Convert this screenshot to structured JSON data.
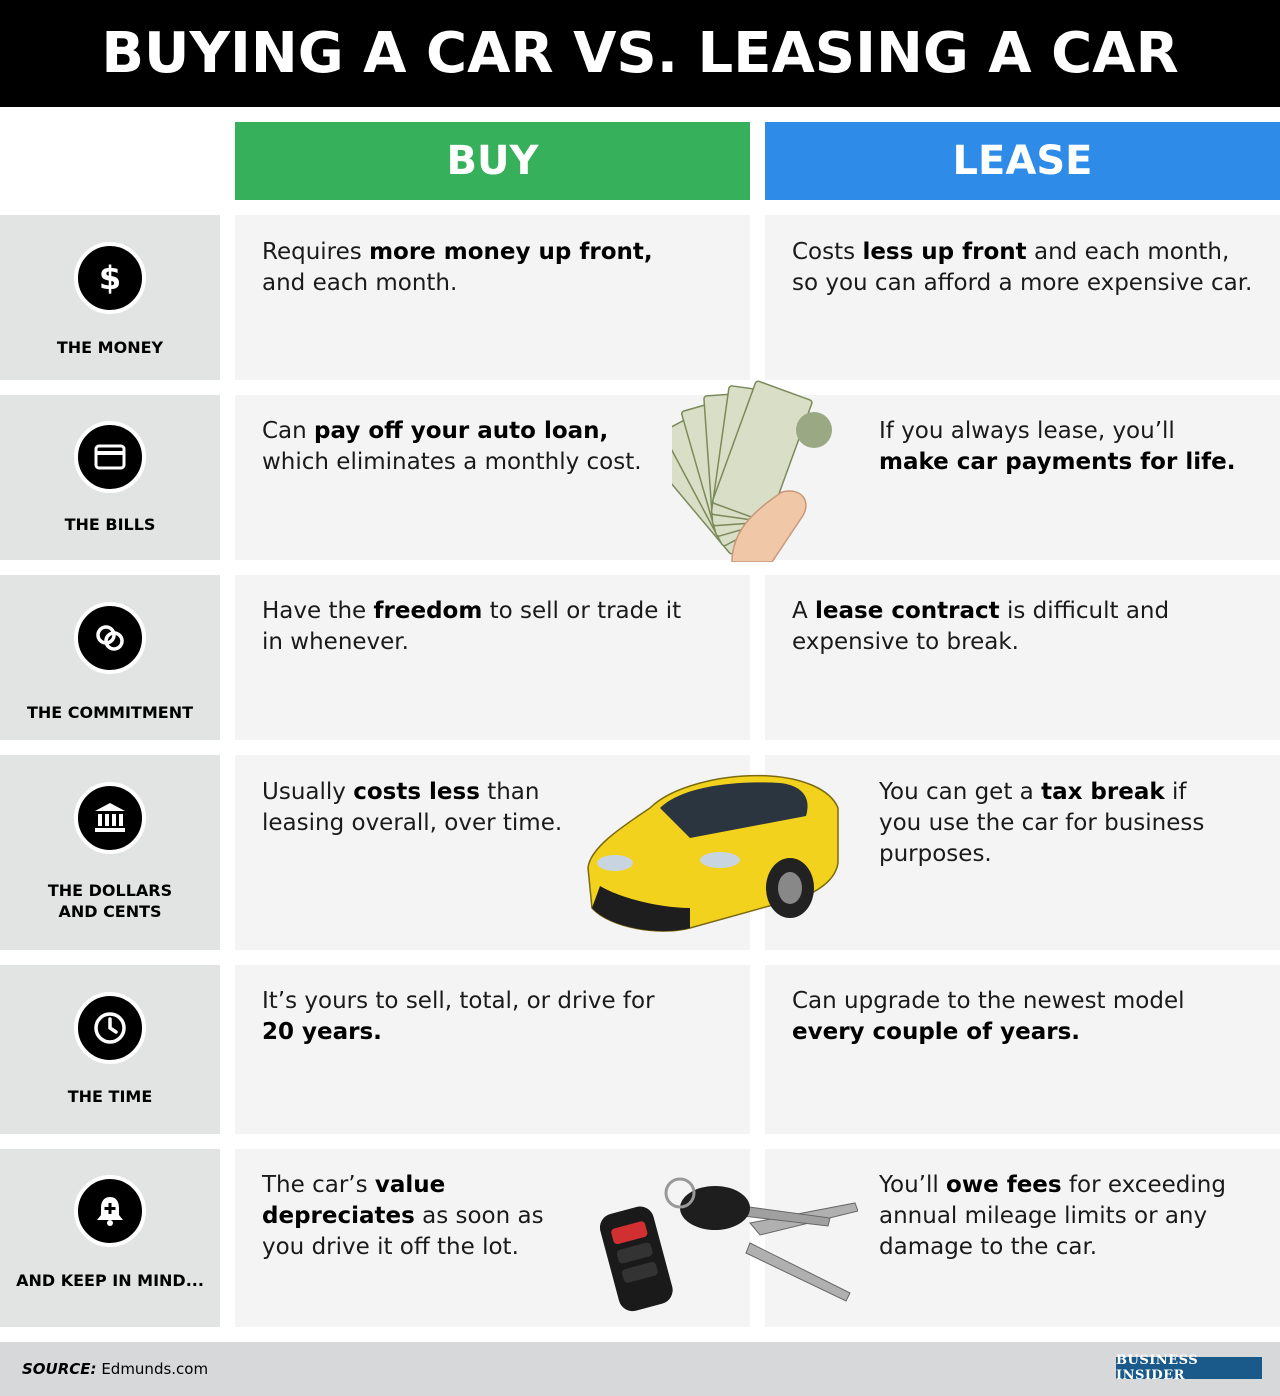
{
  "title": "BUYING A CAR VS. LEASING A CAR",
  "columns": {
    "buy": "BUY",
    "lease": "LEASE"
  },
  "rows": [
    {
      "label": "THE MONEY",
      "icon": "dollar-icon",
      "buy": [
        "Requires ",
        "more money up front,",
        " and each month."
      ],
      "lease": [
        "Costs ",
        "less up front",
        " and each month, so you can afford a more expensive car."
      ]
    },
    {
      "label": "THE BILLS",
      "icon": "credit-card-icon",
      "buy": [
        "Can ",
        "pay off your auto loan,",
        " which eliminates a monthly cost."
      ],
      "lease": [
        "If you always lease, you’ll ",
        "make car payments for life.",
        ""
      ]
    },
    {
      "label": "THE COMMITMENT",
      "icon": "rings-icon",
      "buy": [
        "Have the ",
        "freedom",
        " to sell or trade it in whenever."
      ],
      "lease": [
        "A ",
        "lease contract",
        " is difficult and expensive to break."
      ]
    },
    {
      "label_line1": "THE DOLLARS",
      "label_line2": "AND CENTS",
      "icon": "bank-icon",
      "buy": [
        "Usually ",
        "costs less",
        " than leasing overall, over time."
      ],
      "lease": [
        "You can get a ",
        "tax break",
        " if you use the car for business purposes."
      ]
    },
    {
      "label": "THE TIME",
      "icon": "clock-icon",
      "buy": [
        "It’s yours to sell, total, or drive for ",
        "20 years.",
        ""
      ],
      "lease": [
        "Can upgrade to the newest model ",
        "every couple of years.",
        ""
      ]
    },
    {
      "label": "AND KEEP IN MIND...",
      "icon": "alert-bell-icon",
      "buy": [
        "The car’s ",
        "value depreciates",
        " as soon as you drive it off the lot."
      ],
      "lease": [
        "You’ll ",
        "owe fees",
        " for exceeding annual mileage limits or any damage to the car."
      ]
    }
  ],
  "footer": {
    "source_label": "SOURCE:",
    "source_value": " Edmunds.com",
    "logo": "BUSINESS INSIDER"
  },
  "colors": {
    "buy": "#36b05a",
    "lease": "#2f8be8",
    "title_bg": "#000000",
    "label_bg": "#e2e3e3",
    "cell_bg": "#f4f4f4"
  },
  "images": [
    "money-fan-image",
    "yellow-sports-car-image",
    "car-keys-image"
  ]
}
